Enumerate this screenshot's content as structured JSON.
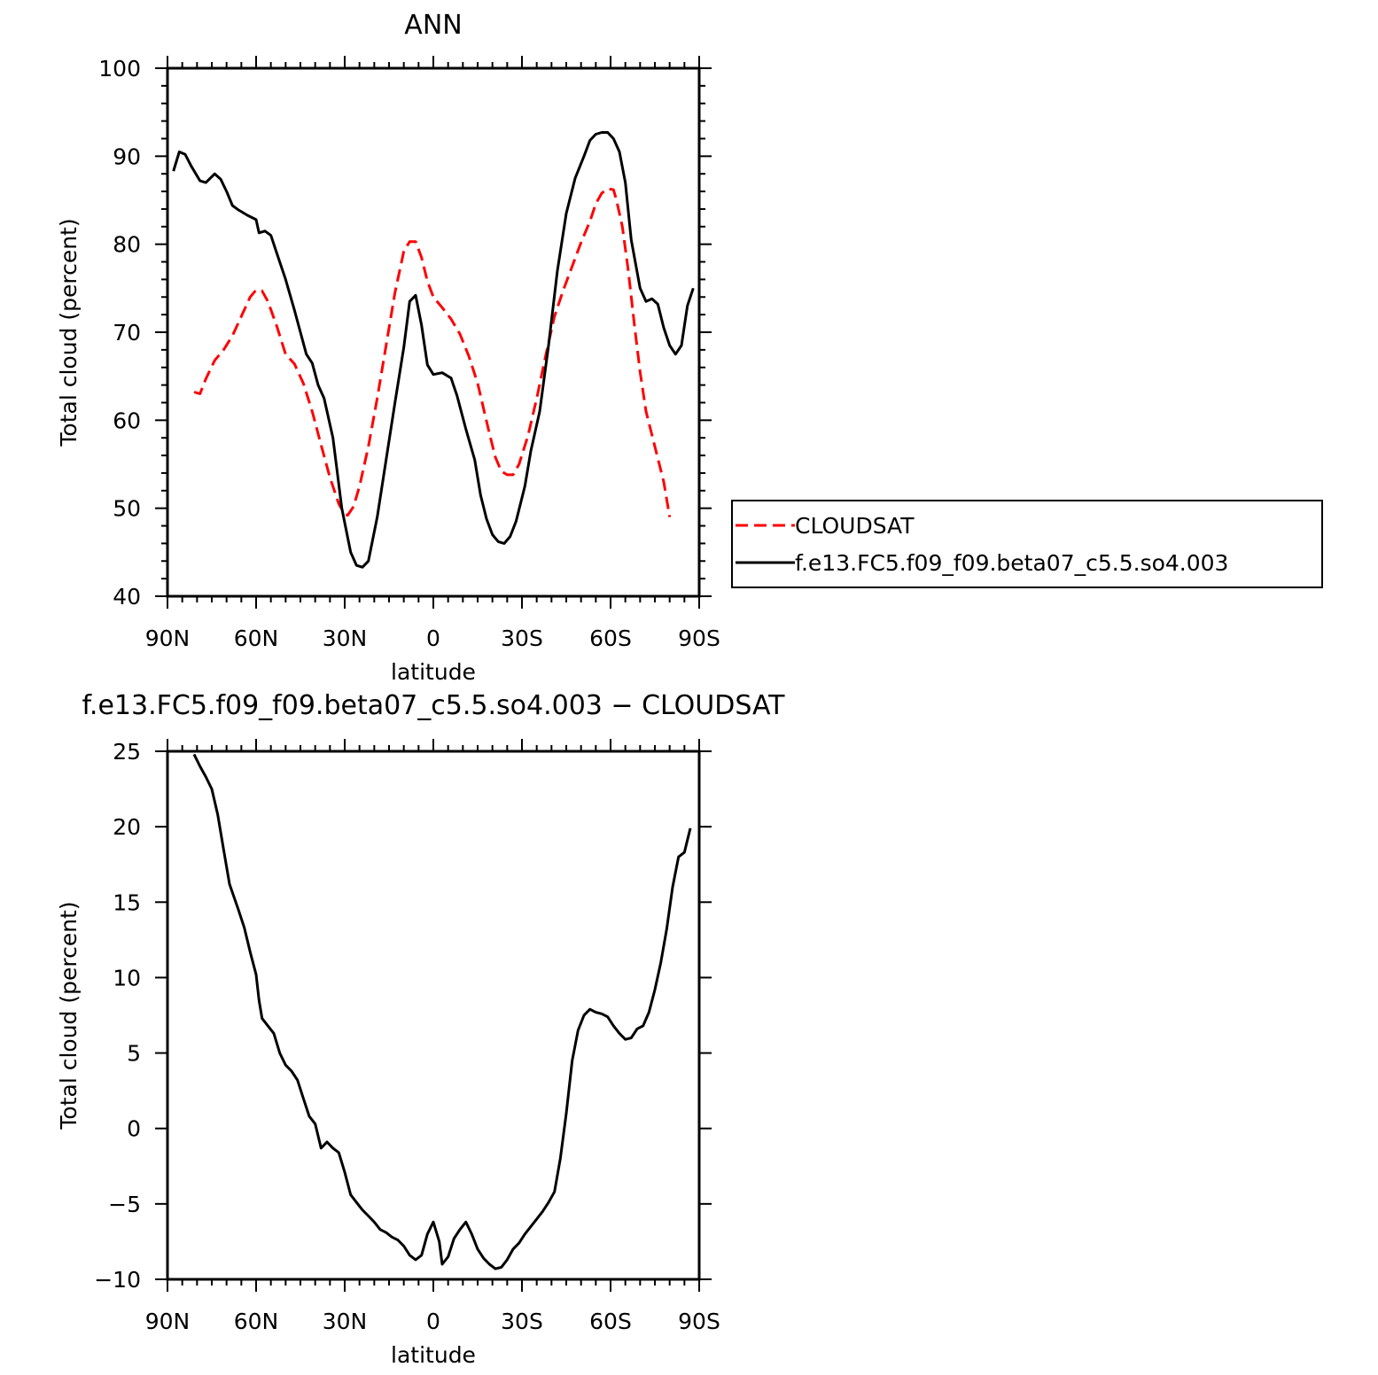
{
  "chart_data": [
    {
      "type": "line",
      "title": "ANN",
      "xlabel": "latitude",
      "ylabel": "Total cloud (percent)",
      "xlim": [
        90,
        -90
      ],
      "ylim": [
        40,
        100
      ],
      "xticks": [
        90,
        60,
        30,
        0,
        -30,
        -60,
        -90
      ],
      "xtick_labels": [
        "90N",
        "60N",
        "30N",
        "0",
        "30S",
        "60S",
        "90S"
      ],
      "yticks": [
        40,
        50,
        60,
        70,
        80,
        90,
        100
      ],
      "ytick_labels": [
        "40",
        "50",
        "60",
        "70",
        "80",
        "90",
        "100"
      ],
      "legend_position": "right",
      "series": [
        {
          "name": "CLOUDSAT",
          "color": "#ff0000",
          "dash": "dashed",
          "points": [
            [
              81,
              63.2
            ],
            [
              79,
              63.0
            ],
            [
              77,
              64.7
            ],
            [
              74,
              66.8
            ],
            [
              71,
              68.0
            ],
            [
              68,
              69.6
            ],
            [
              65,
              71.8
            ],
            [
              62,
              74.0
            ],
            [
              60,
              74.8
            ],
            [
              58,
              74.7
            ],
            [
              56,
              73.5
            ],
            [
              53,
              70.7
            ],
            [
              50,
              67.5
            ],
            [
              47,
              66.4
            ],
            [
              44,
              64.2
            ],
            [
              41,
              61.0
            ],
            [
              38,
              57.2
            ],
            [
              35,
              53.5
            ],
            [
              32,
              50.5
            ],
            [
              30,
              49.3
            ],
            [
              29,
              49.2
            ],
            [
              27,
              50.2
            ],
            [
              25,
              52.5
            ],
            [
              22,
              57.0
            ],
            [
              19,
              62.5
            ],
            [
              16,
              68.5
            ],
            [
              13,
              74.5
            ],
            [
              10,
              79.2
            ],
            [
              8,
              80.3
            ],
            [
              6,
              80.3
            ],
            [
              4,
              78.5
            ],
            [
              2,
              75.8
            ],
            [
              0,
              74.0
            ],
            [
              -3,
              72.8
            ],
            [
              -6,
              71.5
            ],
            [
              -9,
              69.8
            ],
            [
              -12,
              67.3
            ],
            [
              -15,
              64.2
            ],
            [
              -17,
              61.3
            ],
            [
              -19,
              58.5
            ],
            [
              -21,
              55.8
            ],
            [
              -23,
              54.2
            ],
            [
              -25,
              53.8
            ],
            [
              -27,
              53.8
            ],
            [
              -29,
              55.0
            ],
            [
              -32,
              58.2
            ],
            [
              -35,
              62.5
            ],
            [
              -38,
              67.3
            ],
            [
              -41,
              71.8
            ],
            [
              -44,
              74.8
            ],
            [
              -47,
              77.5
            ],
            [
              -50,
              80.2
            ],
            [
              -53,
              82.6
            ],
            [
              -55,
              84.6
            ],
            [
              -57,
              85.8
            ],
            [
              -59,
              86.3
            ],
            [
              -61,
              86.2
            ],
            [
              -62,
              85.0
            ],
            [
              -64,
              82.0
            ],
            [
              -66,
              77.0
            ],
            [
              -68,
              71.0
            ],
            [
              -70,
              65.5
            ],
            [
              -72,
              61.0
            ],
            [
              -75,
              57.0
            ],
            [
              -78,
              53.0
            ],
            [
              -80,
              49.0
            ]
          ]
        },
        {
          "name": "f.e13.FC5.f09_f09.beta07_c5.5.so4.003",
          "color": "#000000",
          "dash": "solid",
          "points": [
            [
              88,
              88.3
            ],
            [
              86,
              90.5
            ],
            [
              84,
              90.2
            ],
            [
              82,
              88.9
            ],
            [
              79,
              87.2
            ],
            [
              77,
              87.0
            ],
            [
              74,
              88.0
            ],
            [
              72,
              87.4
            ],
            [
              70,
              86.0
            ],
            [
              68,
              84.4
            ],
            [
              66,
              83.9
            ],
            [
              63,
              83.3
            ],
            [
              60,
              82.8
            ],
            [
              59,
              81.3
            ],
            [
              57,
              81.5
            ],
            [
              55,
              81.0
            ],
            [
              53,
              79.0
            ],
            [
              50,
              76.0
            ],
            [
              47,
              72.5
            ],
            [
              45,
              70.0
            ],
            [
              43,
              67.5
            ],
            [
              41,
              66.5
            ],
            [
              39,
              64.0
            ],
            [
              37,
              62.5
            ],
            [
              34,
              58.0
            ],
            [
              31,
              50.0
            ],
            [
              28,
              45.0
            ],
            [
              26,
              43.5
            ],
            [
              24,
              43.3
            ],
            [
              22,
              44.0
            ],
            [
              19,
              49.0
            ],
            [
              16,
              55.5
            ],
            [
              13,
              62.0
            ],
            [
              10,
              68.3
            ],
            [
              8,
              73.5
            ],
            [
              6,
              74.2
            ],
            [
              4,
              70.8
            ],
            [
              2,
              66.3
            ],
            [
              0,
              65.2
            ],
            [
              -3,
              65.4
            ],
            [
              -6,
              64.8
            ],
            [
              -8,
              62.8
            ],
            [
              -11,
              59.0
            ],
            [
              -14,
              55.5
            ],
            [
              -16,
              51.5
            ],
            [
              -18,
              48.8
            ],
            [
              -20,
              47.0
            ],
            [
              -22,
              46.2
            ],
            [
              -24,
              46.0
            ],
            [
              -26,
              46.8
            ],
            [
              -28,
              48.5
            ],
            [
              -31,
              52.5
            ],
            [
              -33,
              56.5
            ],
            [
              -36,
              61.0
            ],
            [
              -39,
              68.5
            ],
            [
              -42,
              77.0
            ],
            [
              -45,
              83.5
            ],
            [
              -48,
              87.5
            ],
            [
              -51,
              90.0
            ],
            [
              -53,
              91.8
            ],
            [
              -55,
              92.5
            ],
            [
              -57,
              92.7
            ],
            [
              -59,
              92.7
            ],
            [
              -61,
              92.0
            ],
            [
              -63,
              90.5
            ],
            [
              -65,
              87.0
            ],
            [
              -67,
              80.5
            ],
            [
              -70,
              75.0
            ],
            [
              -72,
              73.5
            ],
            [
              -74,
              73.8
            ],
            [
              -76,
              73.2
            ],
            [
              -78,
              70.5
            ],
            [
              -80,
              68.5
            ],
            [
              -82,
              67.5
            ],
            [
              -84,
              68.5
            ],
            [
              -86,
              73.0
            ],
            [
              -88,
              75.0
            ]
          ]
        }
      ]
    },
    {
      "type": "line",
      "title": "f.e13.FC5.f09_f09.beta07_c5.5.so4.003 − CLOUDSAT",
      "xlabel": "latitude",
      "ylabel": "Total cloud (percent)",
      "xlim": [
        90,
        -90
      ],
      "ylim": [
        -10,
        25
      ],
      "xticks": [
        90,
        60,
        30,
        0,
        -30,
        -60,
        -90
      ],
      "xtick_labels": [
        "90N",
        "60N",
        "30N",
        "0",
        "30S",
        "60S",
        "90S"
      ],
      "yticks": [
        -10,
        -5,
        0,
        5,
        10,
        15,
        20,
        25
      ],
      "ytick_labels": [
        "−10",
        "−5",
        "0",
        "5",
        "10",
        "15",
        "20",
        "25"
      ],
      "series": [
        {
          "color": "#000000",
          "dash": "solid",
          "points": [
            [
              81,
              24.8
            ],
            [
              79,
              24.0
            ],
            [
              77,
              23.3
            ],
            [
              75,
              22.5
            ],
            [
              73,
              20.8
            ],
            [
              71,
              18.5
            ],
            [
              69,
              16.2
            ],
            [
              66,
              14.5
            ],
            [
              64,
              13.3
            ],
            [
              62,
              11.7
            ],
            [
              60,
              10.2
            ],
            [
              59,
              8.5
            ],
            [
              58,
              7.3
            ],
            [
              56,
              6.8
            ],
            [
              54,
              6.3
            ],
            [
              52,
              5.0
            ],
            [
              50,
              4.2
            ],
            [
              48,
              3.8
            ],
            [
              46,
              3.2
            ],
            [
              44,
              2.0
            ],
            [
              42,
              0.8
            ],
            [
              40,
              0.3
            ],
            [
              38,
              -1.3
            ],
            [
              36,
              -0.9
            ],
            [
              34,
              -1.3
            ],
            [
              32,
              -1.6
            ],
            [
              30,
              -2.9
            ],
            [
              28,
              -4.4
            ],
            [
              26,
              -4.9
            ],
            [
              24,
              -5.4
            ],
            [
              22,
              -5.8
            ],
            [
              20,
              -6.2
            ],
            [
              18,
              -6.7
            ],
            [
              16,
              -6.9
            ],
            [
              14,
              -7.2
            ],
            [
              12,
              -7.4
            ],
            [
              10,
              -7.8
            ],
            [
              8,
              -8.4
            ],
            [
              6,
              -8.7
            ],
            [
              4,
              -8.4
            ],
            [
              2,
              -7.0
            ],
            [
              0,
              -6.2
            ],
            [
              -2,
              -7.5
            ],
            [
              -3,
              -9.0
            ],
            [
              -5,
              -8.5
            ],
            [
              -7,
              -7.3
            ],
            [
              -9,
              -6.7
            ],
            [
              -11,
              -6.2
            ],
            [
              -13,
              -7.0
            ],
            [
              -15,
              -8.0
            ],
            [
              -17,
              -8.6
            ],
            [
              -19,
              -9.0
            ],
            [
              -21,
              -9.3
            ],
            [
              -23,
              -9.2
            ],
            [
              -25,
              -8.7
            ],
            [
              -27,
              -8.0
            ],
            [
              -29,
              -7.6
            ],
            [
              -31,
              -7.0
            ],
            [
              -33,
              -6.5
            ],
            [
              -35,
              -6.0
            ],
            [
              -37,
              -5.5
            ],
            [
              -39,
              -4.9
            ],
            [
              -41,
              -4.2
            ],
            [
              -43,
              -2.0
            ],
            [
              -45,
              1.0
            ],
            [
              -47,
              4.5
            ],
            [
              -49,
              6.5
            ],
            [
              -51,
              7.5
            ],
            [
              -53,
              7.9
            ],
            [
              -55,
              7.7
            ],
            [
              -57,
              7.6
            ],
            [
              -59,
              7.4
            ],
            [
              -61,
              6.8
            ],
            [
              -63,
              6.3
            ],
            [
              -65,
              5.9
            ],
            [
              -67,
              6.0
            ],
            [
              -69,
              6.6
            ],
            [
              -71,
              6.8
            ],
            [
              -73,
              7.7
            ],
            [
              -75,
              9.2
            ],
            [
              -77,
              11.0
            ],
            [
              -79,
              13.2
            ],
            [
              -81,
              16.0
            ],
            [
              -83,
              18.0
            ],
            [
              -85,
              18.3
            ],
            [
              -87,
              19.9
            ]
          ]
        }
      ]
    }
  ]
}
